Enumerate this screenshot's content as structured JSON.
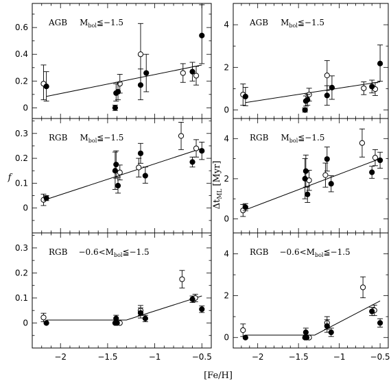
{
  "figure": {
    "xlabel": "[Fe/H]",
    "ylabel_left": "f",
    "ylabel_right_main": "Δt",
    "ylabel_right_sub": "ML",
    "ylabel_right_unit": "[Myr]"
  },
  "chart_data": [
    {
      "type": "scatter",
      "id": "f_agb",
      "col": 0,
      "row": 0,
      "ann": {
        "pre": "AGB",
        "main": "M",
        "sub": "bol",
        "post": "≦−1.5"
      },
      "xlim": [
        -2.3,
        -0.4
      ],
      "ylim": [
        -0.08,
        0.78
      ],
      "yticks": [
        0,
        0.2,
        0.4,
        0.6
      ],
      "yticklabels": [
        "0",
        "0.2",
        "0.4",
        "0.6"
      ],
      "xticks": [
        -2,
        -1.5,
        -1,
        -0.5
      ],
      "xticklabels": [],
      "fit": [
        [
          -2.15,
          0.085
        ],
        [
          -0.5,
          0.32
        ]
      ],
      "open": [
        {
          "x": -2.18,
          "y": 0.18,
          "lo": 0.06,
          "hi": 0.32
        },
        {
          "x": -1.37,
          "y": 0.18,
          "lo": 0.11,
          "hi": 0.25
        },
        {
          "x": -1.15,
          "y": 0.4,
          "lo": 0.17,
          "hi": 0.63
        },
        {
          "x": -0.7,
          "y": 0.26,
          "lo": 0.19,
          "hi": 0.33
        },
        {
          "x": -0.56,
          "y": 0.24,
          "lo": 0.17,
          "hi": 0.31
        }
      ],
      "filled": [
        {
          "x": -2.15,
          "y": 0.16,
          "lo": 0.05,
          "hi": 0.27
        },
        {
          "x": -1.42,
          "y": 0.0,
          "lo": -0.02,
          "hi": 0.02
        },
        {
          "x": -1.41,
          "y": 0.11,
          "lo": 0.05,
          "hi": 0.18
        },
        {
          "x": -1.39,
          "y": 0.12,
          "lo": 0.06,
          "hi": 0.19
        },
        {
          "x": -1.15,
          "y": 0.17,
          "lo": 0.06,
          "hi": 0.29
        },
        {
          "x": -1.09,
          "y": 0.26,
          "lo": 0.12,
          "hi": 0.4
        },
        {
          "x": -0.6,
          "y": 0.27,
          "lo": 0.2,
          "hi": 0.34
        },
        {
          "x": -0.5,
          "y": 0.54,
          "lo": 0.33,
          "hi": 0.77
        }
      ]
    },
    {
      "type": "scatter",
      "id": "f_rgb_bright",
      "col": 0,
      "row": 1,
      "ann": {
        "pre": "RGB",
        "main": "M",
        "sub": "bol",
        "post": "≦−1.5"
      },
      "xlim": [
        -2.3,
        -0.4
      ],
      "ylim": [
        -0.1,
        0.36
      ],
      "yticks": [
        0,
        0.1,
        0.2,
        0.3
      ],
      "yticklabels": [
        "0",
        "0.1",
        "0.2",
        "0.3"
      ],
      "xticks": [
        -2,
        -1.5,
        -1,
        -0.5
      ],
      "xticklabels": [],
      "fit": [
        [
          -2.15,
          0.035
        ],
        [
          -0.5,
          0.24
        ]
      ],
      "open": [
        {
          "x": -2.18,
          "y": 0.033,
          "lo": 0.01,
          "hi": 0.056
        },
        {
          "x": -1.37,
          "y": 0.143,
          "lo": 0.113,
          "hi": 0.173
        },
        {
          "x": -1.17,
          "y": 0.163,
          "lo": 0.125,
          "hi": 0.2
        },
        {
          "x": -0.72,
          "y": 0.29,
          "lo": 0.235,
          "hi": 0.345
        },
        {
          "x": -0.56,
          "y": 0.24,
          "lo": 0.205,
          "hi": 0.275
        }
      ],
      "filled": [
        {
          "x": -2.15,
          "y": 0.04,
          "lo": 0.03,
          "hi": 0.05
        },
        {
          "x": -1.42,
          "y": 0.15,
          "lo": 0.075,
          "hi": 0.225
        },
        {
          "x": -1.41,
          "y": 0.175,
          "lo": 0.12,
          "hi": 0.23
        },
        {
          "x": -1.39,
          "y": 0.09,
          "lo": 0.06,
          "hi": 0.125
        },
        {
          "x": -1.15,
          "y": 0.22,
          "lo": 0.18,
          "hi": 0.26
        },
        {
          "x": -1.1,
          "y": 0.13,
          "lo": 0.1,
          "hi": 0.165
        },
        {
          "x": -0.6,
          "y": 0.185,
          "lo": 0.165,
          "hi": 0.205
        },
        {
          "x": -0.5,
          "y": 0.23,
          "lo": 0.195,
          "hi": 0.265
        }
      ]
    },
    {
      "type": "scatter",
      "id": "f_rgb_faint",
      "col": 0,
      "row": 2,
      "ann": {
        "pre": "RGB",
        "mid": "−0.6<",
        "main": "M",
        "sub": "bol",
        "post": "≦−1.5"
      },
      "xlim": [
        -2.3,
        -0.4
      ],
      "ylim": [
        -0.1,
        0.36
      ],
      "yticks": [
        0,
        0.1,
        0.2,
        0.3
      ],
      "yticklabels": [
        "0",
        "0.1",
        "0.2",
        "0.3"
      ],
      "xticks": [
        -2,
        -1.5,
        -1,
        -0.5
      ],
      "xticklabels": [
        "−2",
        "−1.5",
        "−1",
        "−0.5"
      ],
      "fit": [
        [
          -2.15,
          0.012
        ],
        [
          -1.3,
          0.012
        ],
        [
          -0.5,
          0.108
        ]
      ],
      "open": [
        {
          "x": -2.18,
          "y": 0.022,
          "lo": 0.005,
          "hi": 0.039
        },
        {
          "x": -1.37,
          "y": 0.0
        },
        {
          "x": -1.15,
          "y": 0.05,
          "lo": 0.03,
          "hi": 0.07
        },
        {
          "x": -0.71,
          "y": 0.175,
          "lo": 0.14,
          "hi": 0.21
        },
        {
          "x": -0.57,
          "y": 0.1,
          "lo": 0.085,
          "hi": 0.115
        }
      ],
      "filled": [
        {
          "x": -2.15,
          "y": 0.0
        },
        {
          "x": -1.42,
          "y": 0.0
        },
        {
          "x": -1.41,
          "y": 0.018,
          "lo": 0.005,
          "hi": 0.031
        },
        {
          "x": -1.4,
          "y": 0.0
        },
        {
          "x": -1.15,
          "y": 0.04,
          "lo": 0.02,
          "hi": 0.06
        },
        {
          "x": -1.1,
          "y": 0.018,
          "lo": 0.005,
          "hi": 0.031
        },
        {
          "x": -0.6,
          "y": 0.095,
          "lo": 0.082,
          "hi": 0.108
        },
        {
          "x": -0.5,
          "y": 0.055,
          "lo": 0.042,
          "hi": 0.068
        }
      ]
    },
    {
      "type": "scatter",
      "id": "dt_agb",
      "col": 1,
      "row": 0,
      "ann": {
        "pre": "AGB",
        "main": "M",
        "sub": "bol",
        "post": "≦−1.5"
      },
      "xlim": [
        -2.3,
        -0.4
      ],
      "ylim": [
        -0.4,
        5.0
      ],
      "yticks": [
        0,
        2,
        4
      ],
      "yticklabels": [
        "0",
        "2",
        "4"
      ],
      "xticks": [
        -2,
        -1.5,
        -1,
        -0.5
      ],
      "xticklabels": [],
      "fit": [
        [
          -2.15,
          0.35
        ],
        [
          -0.5,
          1.32
        ]
      ],
      "open": [
        {
          "x": -2.18,
          "y": 0.72,
          "lo": 0.22,
          "hi": 1.22
        },
        {
          "x": -1.37,
          "y": 0.72,
          "lo": 0.42,
          "hi": 1.02
        },
        {
          "x": -1.15,
          "y": 1.62,
          "lo": 0.92,
          "hi": 2.32
        },
        {
          "x": -0.7,
          "y": 1.02,
          "lo": 0.72,
          "hi": 1.32
        },
        {
          "x": -0.56,
          "y": 0.98,
          "lo": 0.68,
          "hi": 1.28
        }
      ],
      "filled": [
        {
          "x": -2.15,
          "y": 0.63,
          "lo": 0.2,
          "hi": 1.06
        },
        {
          "x": -1.42,
          "y": 0.0,
          "lo": -0.1,
          "hi": 0.1
        },
        {
          "x": -1.41,
          "y": 0.42,
          "lo": 0.18,
          "hi": 0.66
        },
        {
          "x": -1.39,
          "y": 0.48,
          "lo": 0.22,
          "hi": 0.74
        },
        {
          "x": -1.15,
          "y": 0.68,
          "lo": 0.22,
          "hi": 1.14
        },
        {
          "x": -1.09,
          "y": 1.05,
          "lo": 0.5,
          "hi": 1.6
        },
        {
          "x": -0.6,
          "y": 1.1,
          "lo": 0.8,
          "hi": 1.4
        },
        {
          "x": -0.5,
          "y": 2.18,
          "lo": 1.35,
          "hi": 3.05
        }
      ]
    },
    {
      "type": "scatter",
      "id": "dt_rgb_bright",
      "col": 1,
      "row": 1,
      "ann": {
        "pre": "RGB",
        "main": "M",
        "sub": "bol",
        "post": "≦−1.5"
      },
      "xlim": [
        -2.3,
        -0.4
      ],
      "ylim": [
        -0.7,
        5.0
      ],
      "yticks": [
        0,
        2,
        4
      ],
      "yticklabels": [
        "0",
        "2",
        "4"
      ],
      "xticks": [
        -2,
        -1.5,
        -1,
        -0.5
      ],
      "xticklabels": [],
      "fit": [
        [
          -2.15,
          0.45
        ],
        [
          -0.5,
          3.0
        ]
      ],
      "open": [
        {
          "x": -2.18,
          "y": 0.42,
          "lo": 0.12,
          "hi": 0.72
        },
        {
          "x": -1.37,
          "y": 1.92,
          "lo": 1.42,
          "hi": 2.42
        },
        {
          "x": -1.17,
          "y": 2.18,
          "lo": 1.58,
          "hi": 2.78
        },
        {
          "x": -0.72,
          "y": 3.78,
          "lo": 3.08,
          "hi": 4.48
        },
        {
          "x": -0.56,
          "y": 3.05,
          "lo": 2.65,
          "hi": 3.45
        }
      ],
      "filled": [
        {
          "x": -2.15,
          "y": 0.58,
          "lo": 0.4,
          "hi": 0.76
        },
        {
          "x": -1.42,
          "y": 2.0,
          "lo": 1.0,
          "hi": 3.0
        },
        {
          "x": -1.41,
          "y": 2.38,
          "lo": 1.58,
          "hi": 3.18
        },
        {
          "x": -1.39,
          "y": 1.22,
          "lo": 0.82,
          "hi": 1.62
        },
        {
          "x": -1.15,
          "y": 2.98,
          "lo": 2.38,
          "hi": 3.58
        },
        {
          "x": -1.1,
          "y": 1.75,
          "lo": 1.35,
          "hi": 2.15
        },
        {
          "x": -0.6,
          "y": 2.32,
          "lo": 2.02,
          "hi": 2.62
        },
        {
          "x": -0.5,
          "y": 2.92,
          "lo": 2.52,
          "hi": 3.32
        }
      ]
    },
    {
      "type": "scatter",
      "id": "dt_rgb_faint",
      "col": 1,
      "row": 2,
      "ann": {
        "pre": "RGB",
        "mid": "−0.6<",
        "main": "M",
        "sub": "bol",
        "post": "≦−1.5"
      },
      "xlim": [
        -2.3,
        -0.4
      ],
      "ylim": [
        -0.5,
        5.0
      ],
      "yticks": [
        0,
        2,
        4
      ],
      "yticklabels": [
        "0",
        "2",
        "4"
      ],
      "xticks": [
        -2,
        -1.5,
        -1,
        -0.5
      ],
      "xticklabels": [
        "−2",
        "−1.5",
        "−1",
        "−0.5"
      ],
      "fit": [
        [
          -2.15,
          0.12
        ],
        [
          -1.3,
          0.12
        ],
        [
          -0.5,
          1.75
        ]
      ],
      "open": [
        {
          "x": -2.18,
          "y": 0.35,
          "lo": 0.05,
          "hi": 0.65
        },
        {
          "x": -1.37,
          "y": 0.0
        },
        {
          "x": -1.15,
          "y": 0.7,
          "lo": 0.4,
          "hi": 1.0
        },
        {
          "x": -0.71,
          "y": 2.4,
          "lo": 1.9,
          "hi": 2.9
        },
        {
          "x": -0.57,
          "y": 1.3,
          "lo": 1.05,
          "hi": 1.55
        }
      ],
      "filled": [
        {
          "x": -2.15,
          "y": 0.0
        },
        {
          "x": -1.42,
          "y": 0.0
        },
        {
          "x": -1.41,
          "y": 0.25,
          "lo": 0.05,
          "hi": 0.45
        },
        {
          "x": -1.4,
          "y": 0.0
        },
        {
          "x": -1.15,
          "y": 0.55,
          "lo": 0.25,
          "hi": 0.85
        },
        {
          "x": -1.1,
          "y": 0.25,
          "lo": 0.05,
          "hi": 0.45
        },
        {
          "x": -0.6,
          "y": 1.25,
          "lo": 1.05,
          "hi": 1.45
        },
        {
          "x": -0.5,
          "y": 0.7,
          "lo": 0.5,
          "hi": 0.9
        }
      ]
    }
  ]
}
